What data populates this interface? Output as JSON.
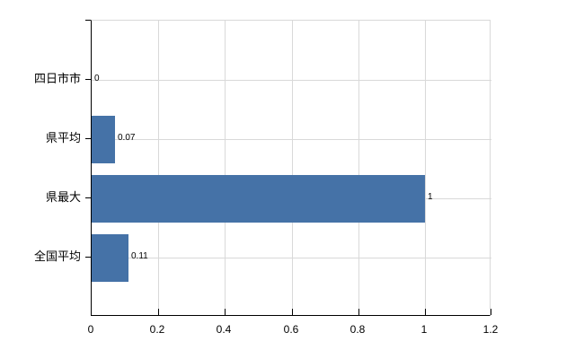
{
  "chart_data": {
    "type": "bar",
    "orientation": "horizontal",
    "title": "",
    "xlabel": "",
    "ylabel": "",
    "categories": [
      "四日市市",
      "県平均",
      "県最大",
      "全国平均"
    ],
    "values": [
      0,
      0.07,
      1,
      0.11
    ],
    "value_labels": [
      "0",
      "0.07",
      "1",
      "0.11"
    ],
    "xlim": [
      0,
      1.2
    ],
    "x_ticks": [
      0,
      0.2,
      0.4,
      0.6,
      0.8,
      1,
      1.2
    ],
    "x_tick_labels": [
      "0",
      "0.2",
      "0.4",
      "0.6",
      "0.8",
      "1",
      "1.2"
    ],
    "grid": true,
    "legend": "none",
    "colors": {
      "bar": "#4572a7",
      "grid": "#d9d9d9",
      "axis": "#000000",
      "plot_border": "#d9d9d9",
      "text": "#000000",
      "background": "#ffffff"
    }
  }
}
